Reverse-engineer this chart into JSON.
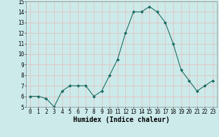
{
  "x": [
    0,
    1,
    2,
    3,
    4,
    5,
    6,
    7,
    8,
    9,
    10,
    11,
    12,
    13,
    14,
    15,
    16,
    17,
    18,
    19,
    20,
    21,
    22,
    23
  ],
  "y": [
    6.0,
    6.0,
    5.8,
    5.0,
    6.5,
    7.0,
    7.0,
    7.0,
    6.0,
    6.5,
    8.0,
    9.5,
    12.0,
    14.0,
    14.0,
    14.5,
    14.0,
    13.0,
    11.0,
    8.5,
    7.5,
    6.5,
    7.0,
    7.5
  ],
  "xlabel": "Humidex (Indice chaleur)",
  "ylim": [
    5,
    15
  ],
  "yticks": [
    5,
    6,
    7,
    8,
    9,
    10,
    11,
    12,
    13,
    14,
    15
  ],
  "xtick_labels": [
    "0",
    "1",
    "2",
    "3",
    "4",
    "5",
    "6",
    "7",
    "8",
    "9",
    "10",
    "11",
    "12",
    "13",
    "14",
    "15",
    "16",
    "17",
    "18",
    "19",
    "20",
    "21",
    "22",
    "23"
  ],
  "line_color": "#1a6b5e",
  "marker_color": "#1a6b5e",
  "bg_color": "#cceaea",
  "grid_major_color": "#ffffff",
  "grid_minor_color": "#dff0f0",
  "tick_label_fontsize": 5.5,
  "xlabel_fontsize": 7.0
}
